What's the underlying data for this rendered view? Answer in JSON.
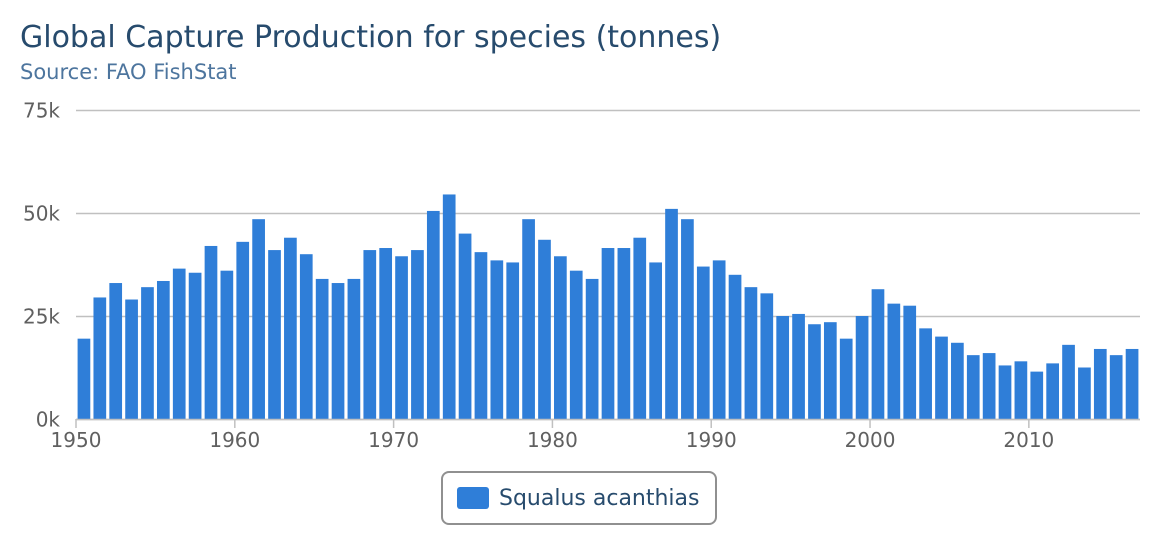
{
  "title": "Global Capture Production for species (tonnes)",
  "subtitle": "Source: FAO FishStat",
  "colors": {
    "bar": "#2f7ed8",
    "grid": "#c0c0c0",
    "axis_text": "#606060",
    "title": "#274b6d"
  },
  "chart_data": {
    "type": "bar",
    "title": "Global Capture Production for species (tonnes)",
    "subtitle": "Source: FAO FishStat",
    "xlabel": "",
    "ylabel": "",
    "x": [
      1950,
      1951,
      1952,
      1953,
      1954,
      1955,
      1956,
      1957,
      1958,
      1959,
      1960,
      1961,
      1962,
      1963,
      1964,
      1965,
      1966,
      1967,
      1968,
      1969,
      1970,
      1971,
      1972,
      1973,
      1974,
      1975,
      1976,
      1977,
      1978,
      1979,
      1980,
      1981,
      1982,
      1983,
      1984,
      1985,
      1986,
      1987,
      1988,
      1989,
      1990,
      1991,
      1992,
      1993,
      1994,
      1995,
      1996,
      1997,
      1998,
      1999,
      2000,
      2001,
      2002,
      2003,
      2004,
      2005,
      2006,
      2007,
      2008,
      2009,
      2010,
      2011,
      2012,
      2013,
      2014,
      2015,
      2016
    ],
    "series": [
      {
        "name": "Squalus acanthias",
        "values": [
          19500,
          29500,
          33000,
          29000,
          32000,
          33500,
          36500,
          35500,
          42000,
          36000,
          43000,
          48500,
          41000,
          44000,
          40000,
          34000,
          33000,
          34000,
          41000,
          41500,
          39500,
          41000,
          50500,
          54500,
          45000,
          40500,
          38500,
          38000,
          48500,
          43500,
          39500,
          36000,
          34000,
          41500,
          41500,
          44000,
          38000,
          51000,
          48500,
          37000,
          38500,
          35000,
          32000,
          30500,
          25000,
          25500,
          23000,
          23500,
          19500,
          25000,
          31500,
          28000,
          27500,
          22000,
          20000,
          18500,
          15500,
          16000,
          13000,
          14000,
          11500,
          13500,
          18000,
          12500,
          17000,
          15500,
          17000
        ]
      }
    ],
    "ylim": [
      0,
      75000
    ],
    "yticks": [
      0,
      25000,
      50000,
      75000
    ],
    "ytick_labels": [
      "0k",
      "25k",
      "50k",
      "75k"
    ],
    "xticks": [
      1950,
      1960,
      1970,
      1980,
      1990,
      2000,
      2010
    ],
    "grid": true,
    "legend_position": "bottom-center"
  }
}
